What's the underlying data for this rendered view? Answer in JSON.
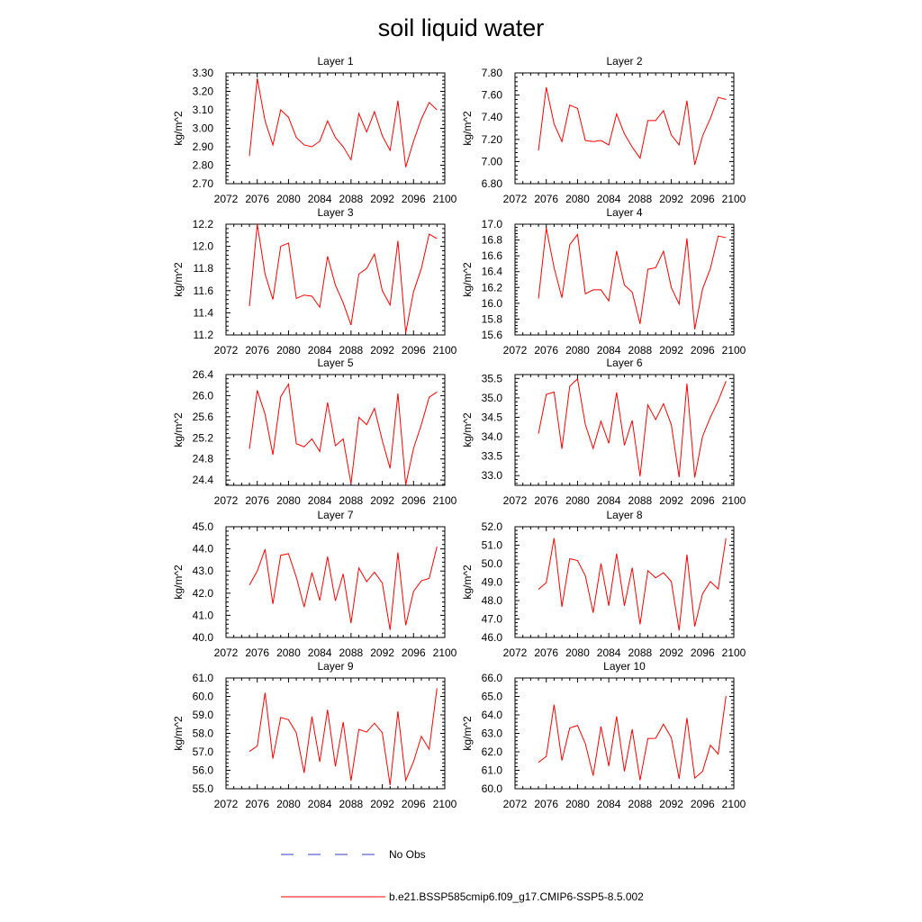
{
  "title": "soil liquid water",
  "legend": {
    "items": [
      {
        "label": "No Obs",
        "color": "#3b3bcc",
        "style": "dashed"
      },
      {
        "label": "b.e21.BSSP585cmip6.f09_g17.CMIP6-SSP5-8.5.002",
        "color": "#ff0000",
        "style": "solid"
      }
    ]
  },
  "chart_data": [
    {
      "type": "line",
      "title": "Layer 1",
      "ylabel": "kg/m^2",
      "xlim": [
        2072,
        2100
      ],
      "ylim": [
        2.7,
        3.3
      ],
      "xticks": [
        "2072",
        "2076",
        "2080",
        "2084",
        "2088",
        "2092",
        "2096",
        "2100"
      ],
      "yticks": [
        "2.70",
        "2.80",
        "2.90",
        "3.00",
        "3.10",
        "3.20",
        "3.30"
      ],
      "x": [
        2075,
        2076,
        2077,
        2078,
        2079,
        2080,
        2081,
        2082,
        2083,
        2084,
        2085,
        2086,
        2087,
        2088,
        2089,
        2090,
        2091,
        2092,
        2093,
        2094,
        2095,
        2096,
        2097,
        2098,
        2099
      ],
      "series": [
        {
          "name": "b.e21.BSSP585cmip6.f09_g17.CMIP6-SSP5-8.5.002",
          "color": "#ff0000",
          "values": [
            2.85,
            3.27,
            3.04,
            2.91,
            3.1,
            3.06,
            2.95,
            2.91,
            2.9,
            2.93,
            3.04,
            2.95,
            2.9,
            2.83,
            3.08,
            2.98,
            3.09,
            2.96,
            2.88,
            3.15,
            2.79,
            2.93,
            3.05,
            3.14,
            3.1
          ]
        }
      ]
    },
    {
      "type": "line",
      "title": "Layer 2",
      "ylabel": "kg/m^2",
      "xlim": [
        2072,
        2100
      ],
      "ylim": [
        6.8,
        7.8
      ],
      "xticks": [
        "2072",
        "2076",
        "2080",
        "2084",
        "2088",
        "2092",
        "2096",
        "2100"
      ],
      "yticks": [
        "6.80",
        "7.00",
        "7.20",
        "7.40",
        "7.60",
        "7.80"
      ],
      "x": [
        2075,
        2076,
        2077,
        2078,
        2079,
        2080,
        2081,
        2082,
        2083,
        2084,
        2085,
        2086,
        2087,
        2088,
        2089,
        2090,
        2091,
        2092,
        2093,
        2094,
        2095,
        2096,
        2097,
        2098,
        2099
      ],
      "series": [
        {
          "name": "b.e21.BSSP585cmip6.f09_g17.CMIP6-SSP5-8.5.002",
          "color": "#ff0000",
          "values": [
            7.1,
            7.67,
            7.34,
            7.18,
            7.51,
            7.48,
            7.19,
            7.18,
            7.19,
            7.15,
            7.43,
            7.25,
            7.13,
            7.03,
            7.37,
            7.37,
            7.46,
            7.24,
            7.15,
            7.55,
            6.97,
            7.23,
            7.39,
            7.58,
            7.56
          ]
        }
      ]
    },
    {
      "type": "line",
      "title": "Layer 3",
      "ylabel": "kg/m^2",
      "xlim": [
        2072,
        2100
      ],
      "ylim": [
        11.2,
        12.2
      ],
      "xticks": [
        "2072",
        "2076",
        "2080",
        "2084",
        "2088",
        "2092",
        "2096",
        "2100"
      ],
      "yticks": [
        "11.2",
        "11.4",
        "11.6",
        "11.8",
        "12.0",
        "12.2"
      ],
      "x": [
        2075,
        2076,
        2077,
        2078,
        2079,
        2080,
        2081,
        2082,
        2083,
        2084,
        2085,
        2086,
        2087,
        2088,
        2089,
        2090,
        2091,
        2092,
        2093,
        2094,
        2095,
        2096,
        2097,
        2098,
        2099
      ],
      "series": [
        {
          "name": "b.e21.BSSP585cmip6.f09_g17.CMIP6-SSP5-8.5.002",
          "color": "#ff0000",
          "values": [
            11.46,
            12.2,
            11.75,
            11.52,
            12.0,
            12.03,
            11.53,
            11.56,
            11.55,
            11.45,
            11.91,
            11.65,
            11.49,
            11.29,
            11.75,
            11.8,
            11.93,
            11.6,
            11.47,
            12.05,
            11.22,
            11.59,
            11.8,
            12.11,
            12.07
          ]
        }
      ]
    },
    {
      "type": "line",
      "title": "Layer 4",
      "ylabel": "kg/m^2",
      "xlim": [
        2072,
        2100
      ],
      "ylim": [
        15.6,
        17.0
      ],
      "xticks": [
        "2072",
        "2076",
        "2080",
        "2084",
        "2088",
        "2092",
        "2096",
        "2100"
      ],
      "yticks": [
        "15.6",
        "15.8",
        "16.0",
        "16.2",
        "16.4",
        "16.6",
        "16.8",
        "17.0"
      ],
      "x": [
        2075,
        2076,
        2077,
        2078,
        2079,
        2080,
        2081,
        2082,
        2083,
        2084,
        2085,
        2086,
        2087,
        2088,
        2089,
        2090,
        2091,
        2092,
        2093,
        2094,
        2095,
        2096,
        2097,
        2098,
        2099
      ],
      "series": [
        {
          "name": "b.e21.BSSP585cmip6.f09_g17.CMIP6-SSP5-8.5.002",
          "color": "#ff0000",
          "values": [
            16.06,
            16.95,
            16.45,
            16.07,
            16.74,
            16.87,
            16.12,
            16.17,
            16.17,
            16.03,
            16.66,
            16.23,
            16.14,
            15.74,
            16.43,
            16.45,
            16.66,
            16.2,
            15.99,
            16.82,
            15.67,
            16.18,
            16.44,
            16.85,
            16.83
          ]
        }
      ]
    },
    {
      "type": "line",
      "title": "Layer 5",
      "ylabel": "kg/m^2",
      "xlim": [
        2072,
        2100
      ],
      "ylim": [
        24.3,
        26.4
      ],
      "xticks": [
        "2072",
        "2076",
        "2080",
        "2084",
        "2088",
        "2092",
        "2096",
        "2100"
      ],
      "yticks": [
        "24.4",
        "24.8",
        "25.2",
        "25.6",
        "26.0",
        "26.4"
      ],
      "x": [
        2075,
        2076,
        2077,
        2078,
        2079,
        2080,
        2081,
        2082,
        2083,
        2084,
        2085,
        2086,
        2087,
        2088,
        2089,
        2090,
        2091,
        2092,
        2093,
        2094,
        2095,
        2096,
        2097,
        2098,
        2099
      ],
      "series": [
        {
          "name": "b.e21.BSSP585cmip6.f09_g17.CMIP6-SSP5-8.5.002",
          "color": "#ff0000",
          "values": [
            24.99,
            26.1,
            25.65,
            24.88,
            25.98,
            26.22,
            25.09,
            25.03,
            25.18,
            24.94,
            25.87,
            25.05,
            25.18,
            24.33,
            25.59,
            25.45,
            25.76,
            25.15,
            24.62,
            26.04,
            24.31,
            25.0,
            25.45,
            25.97,
            26.07
          ]
        }
      ]
    },
    {
      "type": "line",
      "title": "Layer 6",
      "ylabel": "kg/m^2",
      "xlim": [
        2072,
        2100
      ],
      "ylim": [
        32.75,
        35.6
      ],
      "xticks": [
        "2072",
        "2076",
        "2080",
        "2084",
        "2088",
        "2092",
        "2096",
        "2100"
      ],
      "yticks": [
        "33.0",
        "33.5",
        "34.0",
        "34.5",
        "35.0",
        "35.5"
      ],
      "x": [
        2075,
        2076,
        2077,
        2078,
        2079,
        2080,
        2081,
        2082,
        2083,
        2084,
        2085,
        2086,
        2087,
        2088,
        2089,
        2090,
        2091,
        2092,
        2093,
        2094,
        2095,
        2096,
        2097,
        2098,
        2099
      ],
      "series": [
        {
          "name": "b.e21.BSSP585cmip6.f09_g17.CMIP6-SSP5-8.5.002",
          "color": "#ff0000",
          "values": [
            34.08,
            35.09,
            35.15,
            33.69,
            35.3,
            35.49,
            34.31,
            33.7,
            34.4,
            33.83,
            35.14,
            33.78,
            34.42,
            32.98,
            34.82,
            34.44,
            34.85,
            34.31,
            32.96,
            35.37,
            32.95,
            34.01,
            34.5,
            34.92,
            35.43
          ]
        }
      ]
    },
    {
      "type": "line",
      "title": "Layer 7",
      "ylabel": "kg/m^2",
      "xlim": [
        2072,
        2100
      ],
      "ylim": [
        40.0,
        45.0
      ],
      "xticks": [
        "2072",
        "2076",
        "2080",
        "2084",
        "2088",
        "2092",
        "2096",
        "2100"
      ],
      "yticks": [
        "40.0",
        "41.0",
        "42.0",
        "43.0",
        "44.0",
        "45.0"
      ],
      "x": [
        2075,
        2076,
        2077,
        2078,
        2079,
        2080,
        2081,
        2082,
        2083,
        2084,
        2085,
        2086,
        2087,
        2088,
        2089,
        2090,
        2091,
        2092,
        2093,
        2094,
        2095,
        2096,
        2097,
        2098,
        2099
      ],
      "series": [
        {
          "name": "b.e21.BSSP585cmip6.f09_g17.CMIP6-SSP5-8.5.002",
          "color": "#ff0000",
          "values": [
            42.37,
            43.0,
            43.98,
            41.51,
            43.71,
            43.78,
            42.72,
            41.37,
            42.93,
            41.67,
            43.65,
            41.65,
            42.87,
            40.65,
            43.14,
            42.52,
            42.95,
            42.46,
            40.34,
            43.84,
            40.55,
            42.08,
            42.56,
            42.67,
            44.1
          ]
        }
      ]
    },
    {
      "type": "line",
      "title": "Layer 8",
      "ylabel": "kg/m^2",
      "xlim": [
        2072,
        2100
      ],
      "ylim": [
        46.0,
        52.0
      ],
      "xticks": [
        "2072",
        "2076",
        "2080",
        "2084",
        "2088",
        "2092",
        "2096",
        "2100"
      ],
      "yticks": [
        "46.0",
        "47.0",
        "48.0",
        "49.0",
        "50.0",
        "51.0",
        "52.0"
      ],
      "x": [
        2075,
        2076,
        2077,
        2078,
        2079,
        2080,
        2081,
        2082,
        2083,
        2084,
        2085,
        2086,
        2087,
        2088,
        2089,
        2090,
        2091,
        2092,
        2093,
        2094,
        2095,
        2096,
        2097,
        2098,
        2099
      ],
      "series": [
        {
          "name": "b.e21.BSSP585cmip6.f09_g17.CMIP6-SSP5-8.5.002",
          "color": "#ff0000",
          "values": [
            48.61,
            48.97,
            51.38,
            47.66,
            50.27,
            50.17,
            49.34,
            47.34,
            50.01,
            47.72,
            50.54,
            47.72,
            49.78,
            46.71,
            49.62,
            49.23,
            49.51,
            49.03,
            46.38,
            50.49,
            46.6,
            48.37,
            49.03,
            48.63,
            51.38
          ]
        }
      ]
    },
    {
      "type": "line",
      "title": "Layer 9",
      "ylabel": "kg/m^2",
      "xlim": [
        2072,
        2100
      ],
      "ylim": [
        55.0,
        61.0
      ],
      "xticks": [
        "2072",
        "2076",
        "2080",
        "2084",
        "2088",
        "2092",
        "2096",
        "2100"
      ],
      "yticks": [
        "55.0",
        "56.0",
        "57.0",
        "58.0",
        "59.0",
        "60.0",
        "61.0"
      ],
      "x": [
        2075,
        2076,
        2077,
        2078,
        2079,
        2080,
        2081,
        2082,
        2083,
        2084,
        2085,
        2086,
        2087,
        2088,
        2089,
        2090,
        2091,
        2092,
        2093,
        2094,
        2095,
        2096,
        2097,
        2098,
        2099
      ],
      "series": [
        {
          "name": "b.e21.BSSP585cmip6.f09_g17.CMIP6-SSP5-8.5.002",
          "color": "#ff0000",
          "values": [
            57.02,
            57.31,
            60.2,
            56.63,
            58.86,
            58.74,
            58.03,
            55.86,
            58.91,
            56.46,
            59.28,
            56.21,
            58.61,
            55.43,
            58.22,
            58.07,
            58.55,
            58.04,
            55.2,
            59.19,
            55.45,
            56.47,
            57.84,
            57.14,
            60.44
          ]
        }
      ]
    },
    {
      "type": "line",
      "title": "Layer 10",
      "ylabel": "kg/m^2",
      "xlim": [
        2072,
        2100
      ],
      "ylim": [
        60.0,
        66.0
      ],
      "xticks": [
        "2072",
        "2076",
        "2080",
        "2084",
        "2088",
        "2092",
        "2096",
        "2100"
      ],
      "yticks": [
        "60.0",
        "61.0",
        "62.0",
        "63.0",
        "64.0",
        "65.0",
        "66.0"
      ],
      "x": [
        2075,
        2076,
        2077,
        2078,
        2079,
        2080,
        2081,
        2082,
        2083,
        2084,
        2085,
        2086,
        2087,
        2088,
        2089,
        2090,
        2091,
        2092,
        2093,
        2094,
        2095,
        2096,
        2097,
        2098,
        2099
      ],
      "series": [
        {
          "name": "b.e21.BSSP585cmip6.f09_g17.CMIP6-SSP5-8.5.002",
          "color": "#ff0000",
          "values": [
            61.43,
            61.75,
            64.55,
            61.53,
            63.29,
            63.43,
            62.44,
            60.71,
            63.37,
            61.23,
            63.92,
            60.94,
            63.22,
            60.46,
            62.72,
            62.73,
            63.5,
            62.77,
            60.54,
            63.83,
            60.58,
            60.94,
            62.36,
            61.88,
            65.02
          ]
        }
      ]
    }
  ]
}
